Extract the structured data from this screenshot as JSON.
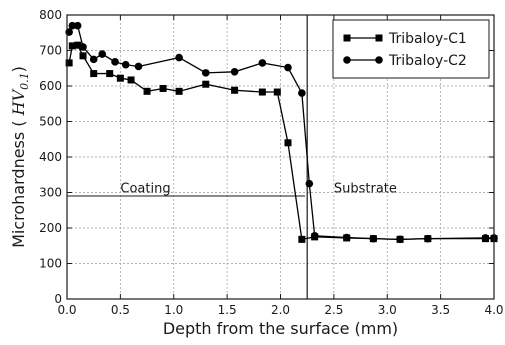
{
  "chart_data": {
    "type": "line",
    "xlabel": "Depth from the surface (mm)",
    "ylabel_prefix": "Microhardness ( ",
    "ylabel_math": "HV",
    "ylabel_sub": "0.1",
    "ylabel_suffix": ")",
    "xlim": [
      0.0,
      4.0
    ],
    "ylim": [
      0,
      800
    ],
    "xticks": [
      0.0,
      0.5,
      1.0,
      1.5,
      2.0,
      2.5,
      3.0,
      3.5,
      4.0
    ],
    "yticks": [
      0,
      100,
      200,
      300,
      400,
      500,
      600,
      700,
      800
    ],
    "grid": true,
    "legend_position": "top-right",
    "series": [
      {
        "name": "Tribaloy-C1",
        "marker": "square",
        "x": [
          0.02,
          0.05,
          0.1,
          0.15,
          0.25,
          0.4,
          0.5,
          0.6,
          0.75,
          0.9,
          1.05,
          1.3,
          1.57,
          1.83,
          1.97,
          2.07,
          2.2,
          2.32,
          2.62,
          2.87,
          3.12,
          3.38,
          3.92,
          4.0
        ],
        "y": [
          665,
          713,
          715,
          685,
          635,
          635,
          622,
          617,
          585,
          593,
          585,
          605,
          588,
          583,
          583,
          440,
          168,
          175,
          172,
          170,
          168,
          170,
          170,
          170
        ]
      },
      {
        "name": "Tribaloy-C2",
        "marker": "circle",
        "x": [
          0.02,
          0.05,
          0.1,
          0.15,
          0.25,
          0.33,
          0.45,
          0.55,
          0.67,
          1.05,
          1.3,
          1.57,
          1.83,
          2.07,
          2.2,
          2.27,
          2.32,
          2.62,
          2.87,
          3.12,
          3.38,
          3.92,
          4.0
        ],
        "y": [
          752,
          770,
          770,
          710,
          675,
          690,
          668,
          660,
          655,
          680,
          637,
          640,
          665,
          652,
          580,
          325,
          178,
          173,
          170,
          168,
          170,
          172,
          172
        ]
      }
    ],
    "annotations": [
      {
        "text": "Coating",
        "x": 0.5,
        "y": 300
      },
      {
        "text": "Substrate",
        "x": 2.5,
        "y": 300
      }
    ],
    "reference_lines": [
      {
        "orientation": "horizontal",
        "y": 290,
        "x_from": 0.0,
        "x_to": 2.23
      },
      {
        "orientation": "vertical",
        "x": 2.25
      }
    ]
  }
}
